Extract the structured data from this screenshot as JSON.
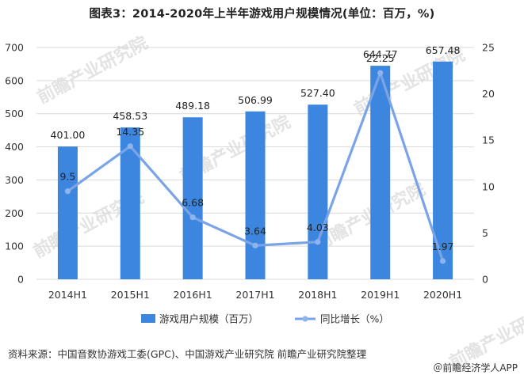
{
  "title": "图表3：2014-2020年上半年游戏用户规模情况(单位：百万，%)",
  "source": "资料来源：中国音数协游戏工委(GPC)、中国游戏产业研究院 前瞻产业研究院整理",
  "credit": "＠前瞻经济学人APP",
  "watermark": "前瞻产业研究院",
  "colors": {
    "bar": "#3d86df",
    "line": "#7aa4e6",
    "marker": "#8db4ec",
    "grid": "#d9d9d9",
    "axis_text": "#333333"
  },
  "chart_data": {
    "type": "bar+line",
    "categories": [
      "2014H1",
      "2015H1",
      "2016H1",
      "2017H1",
      "2018H1",
      "2019H1",
      "2020H1"
    ],
    "series": [
      {
        "name": "游戏用户规模（百万）",
        "type": "bar",
        "axis": "left",
        "values": [
          401.0,
          458.53,
          489.18,
          506.99,
          527.4,
          644.77,
          657.48
        ],
        "labels": [
          "401.00",
          "458.53",
          "489.18",
          "506.99",
          "527.40",
          "644.77",
          "657.48"
        ]
      },
      {
        "name": "同比增长（%）",
        "type": "line",
        "axis": "right",
        "values": [
          9.5,
          14.35,
          6.68,
          3.64,
          4.03,
          22.25,
          1.97
        ],
        "labels": [
          "9.5",
          "14.35",
          "6.68",
          "3.64",
          "4.03",
          "22.25",
          "1.97"
        ]
      }
    ],
    "y_left": {
      "min": 0,
      "max": 700,
      "ticks": [
        "0",
        "100",
        "200",
        "300",
        "400",
        "500",
        "600",
        "700"
      ]
    },
    "y_right": {
      "min": 0,
      "max": 25,
      "ticks": [
        "0",
        "5",
        "10",
        "15",
        "20",
        "25"
      ]
    },
    "grid": true,
    "legend_position": "bottom"
  }
}
